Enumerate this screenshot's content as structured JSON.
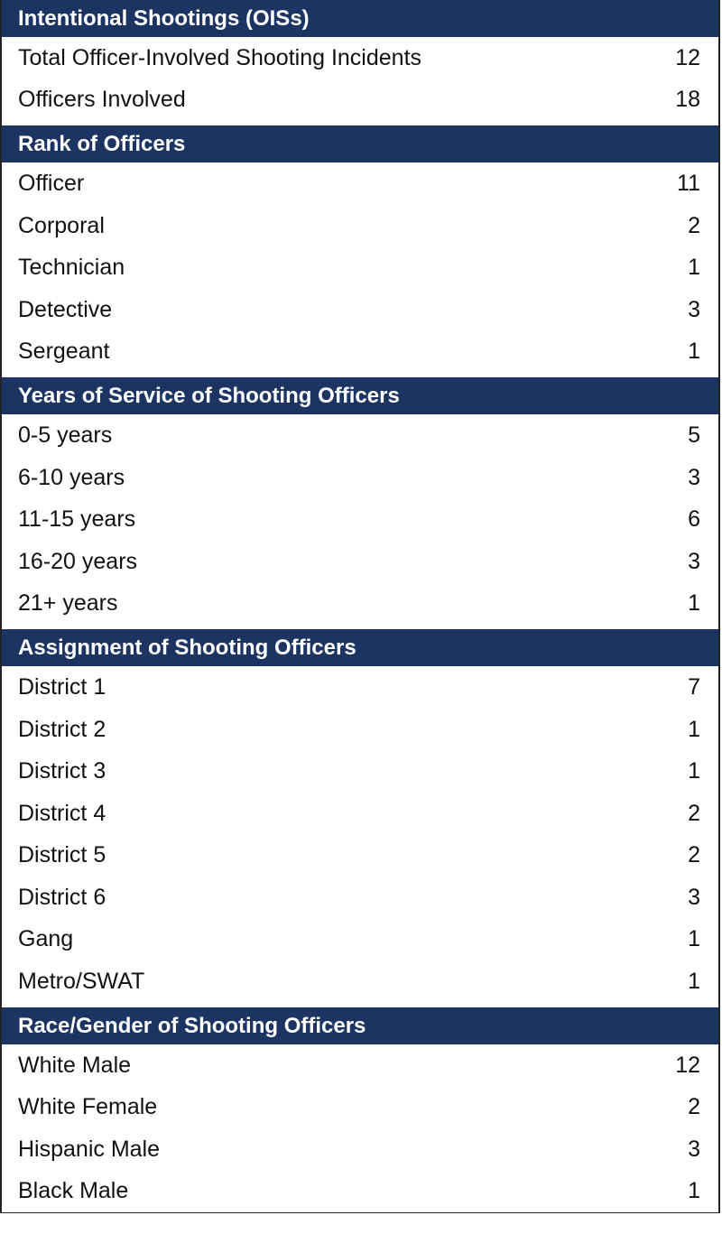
{
  "sections": [
    {
      "title": "Intentional Shootings (OISs)",
      "rows": [
        {
          "label": "Total Officer-Involved Shooting Incidents",
          "value": 12
        },
        {
          "label": "Officers Involved",
          "value": 18
        }
      ]
    },
    {
      "title": "Rank of Officers",
      "rows": [
        {
          "label": "Officer",
          "value": 11
        },
        {
          "label": "Corporal",
          "value": 2
        },
        {
          "label": "Technician",
          "value": 1
        },
        {
          "label": "Detective",
          "value": 3
        },
        {
          "label": "Sergeant",
          "value": 1
        }
      ]
    },
    {
      "title": "Years of Service of Shooting Officers",
      "rows": [
        {
          "label": "0-5 years",
          "value": 5
        },
        {
          "label": "6-10 years",
          "value": 3
        },
        {
          "label": "11-15 years",
          "value": 6
        },
        {
          "label": "16-20 years",
          "value": 3
        },
        {
          "label": "21+ years",
          "value": 1
        }
      ]
    },
    {
      "title": "Assignment of Shooting Officers",
      "rows": [
        {
          "label": "District 1",
          "value": 7
        },
        {
          "label": "District 2",
          "value": 1
        },
        {
          "label": "District 3",
          "value": 1
        },
        {
          "label": "District 4",
          "value": 2
        },
        {
          "label": "District 5",
          "value": 2
        },
        {
          "label": "District 6",
          "value": 3
        },
        {
          "label": "Gang",
          "value": 1
        },
        {
          "label": "Metro/SWAT",
          "value": 1
        }
      ]
    },
    {
      "title": "Race/Gender of Shooting Officers",
      "rows": [
        {
          "label": "White Male",
          "value": 12
        },
        {
          "label": "White Female",
          "value": 2
        },
        {
          "label": "Hispanic Male",
          "value": 3
        },
        {
          "label": "Black Male",
          "value": 1
        }
      ]
    }
  ]
}
